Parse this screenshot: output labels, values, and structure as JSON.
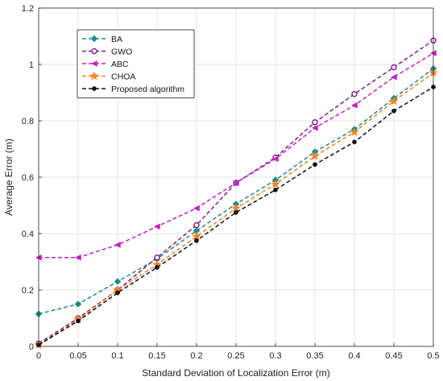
{
  "chart_data": {
    "type": "line",
    "xlabel": "Standard Deviation of Localization Error (m)",
    "ylabel": "Average Error (m)",
    "xlim": [
      0,
      0.5
    ],
    "ylim": [
      0,
      1.2
    ],
    "grid": true,
    "legend_position": "top-left",
    "x": [
      0,
      0.05,
      0.1,
      0.15,
      0.2,
      0.25,
      0.3,
      0.35,
      0.4,
      0.45,
      0.5
    ],
    "x_tick_labels": [
      "0",
      "0.05",
      "0.1",
      "0.15",
      "0.2",
      "0.25",
      "0.3",
      "0.35",
      "0.4",
      "0.45",
      "0.5"
    ],
    "y_ticks": [
      0,
      0.2,
      0.4,
      0.6,
      0.8,
      1,
      1.2
    ],
    "y_tick_labels": [
      "0",
      "0.2",
      "0.4",
      "0.6",
      "0.8",
      "1",
      "1.2"
    ],
    "series": [
      {
        "name": "BA",
        "color": "#1f8a8a",
        "marker": "diamond",
        "values": [
          0.115,
          0.15,
          0.23,
          0.31,
          0.41,
          0.505,
          0.59,
          0.69,
          0.77,
          0.88,
          0.985
        ]
      },
      {
        "name": "GWO",
        "color": "#7b1f86",
        "marker": "circle-open",
        "values": [
          0.01,
          0.1,
          0.2,
          0.315,
          0.43,
          0.58,
          0.67,
          0.795,
          0.895,
          0.99,
          1.085
        ]
      },
      {
        "name": "ABC",
        "color": "#c71fc7",
        "marker": "triangle-left",
        "values": [
          0.315,
          0.315,
          0.36,
          0.425,
          0.49,
          0.58,
          0.665,
          0.775,
          0.855,
          0.955,
          1.04
        ]
      },
      {
        "name": "CHOA",
        "color": "#f5821f",
        "marker": "star",
        "values": [
          0.005,
          0.095,
          0.2,
          0.29,
          0.39,
          0.49,
          0.575,
          0.675,
          0.76,
          0.87,
          0.97
        ]
      },
      {
        "name": "Proposed algorithm",
        "color": "#111111",
        "marker": "dot",
        "values": [
          0.005,
          0.09,
          0.19,
          0.28,
          0.375,
          0.475,
          0.555,
          0.645,
          0.725,
          0.835,
          0.92
        ]
      }
    ]
  }
}
